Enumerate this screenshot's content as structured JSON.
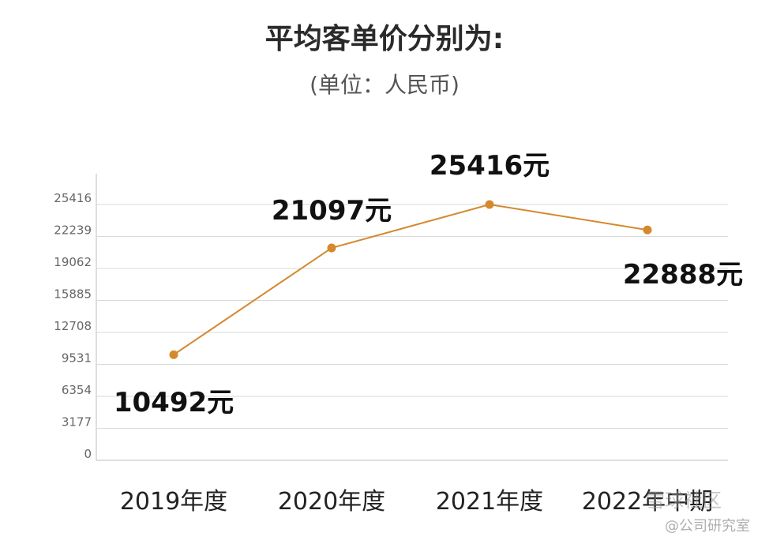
{
  "title": {
    "bold": "平均客单价",
    "rest": "分别为:"
  },
  "subtitle": "(单位：人民币)",
  "watermark": {
    "line1": "雪球社区",
    "line2": "@公司研究室"
  },
  "colors": {
    "line": "#D4892F",
    "grid": "#DADADA",
    "axis": "#BDBDBD"
  },
  "chart_data": {
    "type": "line",
    "categories": [
      "2019年度",
      "2020年度",
      "2021年度",
      "2022年中期"
    ],
    "series": [
      {
        "values": [
          10492,
          21097,
          25416,
          22888
        ]
      }
    ],
    "data_labels": [
      "10492元",
      "21097元",
      "25416元",
      "22888元"
    ],
    "y_ticks": [
      0,
      3177,
      6354,
      9531,
      12708,
      15885,
      19062,
      22239,
      25416
    ],
    "ylim": [
      0,
      27000
    ],
    "grid": true,
    "xlabel": "",
    "ylabel": ""
  }
}
